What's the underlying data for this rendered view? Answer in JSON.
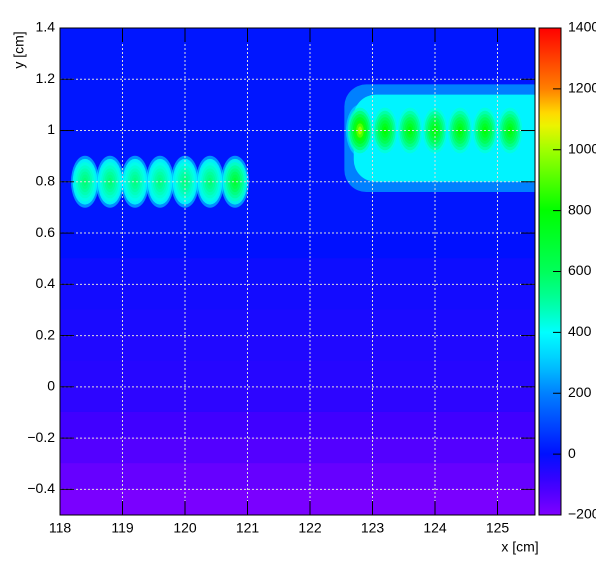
{
  "chart_data": {
    "type": "contour",
    "x_label": "x [cm]",
    "y_label": "y [cm]",
    "xlim": [
      118,
      125.6
    ],
    "ylim": [
      -0.5,
      1.4
    ],
    "zlim": [
      -200,
      1400
    ],
    "xticks": [
      118,
      119,
      120,
      121,
      122,
      123,
      124,
      125
    ],
    "yticks": [
      {
        "value": -0.4,
        "label": "−0.4"
      },
      {
        "value": -0.2,
        "label": "−0.2"
      },
      0,
      0.2,
      0.4,
      0.6,
      0.8,
      1,
      1.2,
      1.4
    ],
    "zticks": [
      {
        "value": -200,
        "label": "−200"
      },
      0,
      200,
      400,
      600,
      800,
      1000,
      1200,
      1400
    ],
    "grid": true,
    "background": {
      "y": [
        1.35,
        1.25,
        1.15,
        1.05,
        0.95,
        0.85,
        0.75,
        0.65,
        0.55,
        0.45,
        0.35,
        0.25,
        0.15,
        0.05,
        -0.05,
        -0.15,
        -0.25,
        -0.35,
        -0.45
      ],
      "z": [
        10,
        10,
        10,
        10,
        10,
        10,
        10,
        10,
        0,
        -20,
        -30,
        -40,
        -50,
        -60,
        -70,
        -100,
        -130,
        -160,
        -190
      ]
    },
    "bands": {
      "x0": [
        122.55,
        122.7
      ],
      "x1": [
        125.6,
        125.6
      ],
      "y0": [
        0.76,
        0.8
      ],
      "y1": [
        1.18,
        1.14
      ],
      "z": [
        200,
        380
      ]
    },
    "peaks": {
      "x": [
        118.4,
        118.8,
        119.2,
        119.6,
        120.0,
        120.4,
        120.8,
        122.8,
        123.2,
        123.6,
        124.0,
        124.4,
        124.8,
        125.2
      ],
      "y": [
        0.8,
        0.8,
        0.8,
        0.8,
        0.8,
        0.8,
        0.8,
        1.0,
        1.0,
        1.0,
        1.0,
        1.0,
        1.0,
        1.0
      ],
      "z": [
        560,
        560,
        540,
        540,
        540,
        560,
        680,
        1000,
        800,
        780,
        780,
        780,
        780,
        780
      ]
    }
  }
}
